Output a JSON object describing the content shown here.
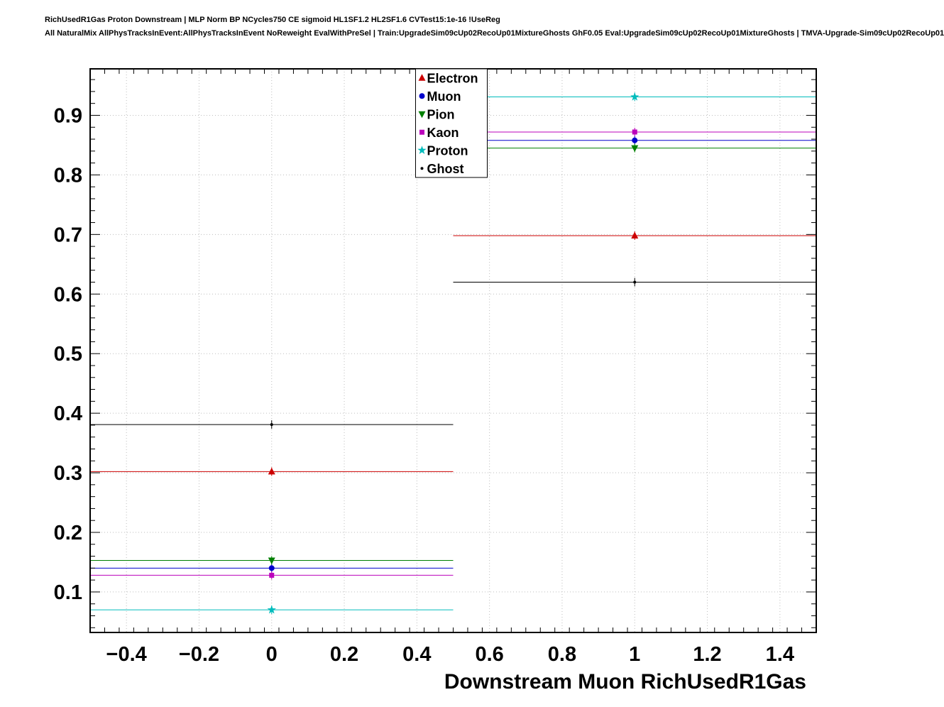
{
  "header": {
    "line1": "RichUsedR1Gas Proton Downstream | MLP Norm BP NCycles750 CE sigmoid HL1SF1.2 HL2SF1.6 CVTest15:1e-16 !UseReg",
    "line2": "All NaturalMix AllPhysTracksInEvent:AllPhysTracksInEvent NoReweight EvalWithPreSel | Train:UpgradeSim09cUp02RecoUp01MixtureGhosts GhF0.05 Eval:UpgradeSim09cUp02RecoUp01MixtureGhosts | TMVA-Upgrade-Sim09cUp02RecoUp01"
  },
  "chart_data": {
    "type": "scatter",
    "title": "",
    "xlabel": "Downstream Muon RichUsedR1Gas",
    "ylabel": "",
    "xlim": [
      -0.5,
      1.5
    ],
    "ylim": [
      0.032,
      0.978
    ],
    "grid": true,
    "grid_style": "dotted",
    "grid_color": "#bdbdbd",
    "legend_position": "top-center",
    "bin_half_width": 0.5,
    "x": [
      0,
      1
    ],
    "x_ticks": [
      -0.4,
      -0.2,
      0,
      0.2,
      0.4,
      0.6,
      0.8,
      1,
      1.2,
      1.4
    ],
    "x_tick_labels": [
      "−0.4",
      "−0.2",
      "0",
      "0.2",
      "0.4",
      "0.6",
      "0.8",
      "1",
      "1.2",
      "1.4"
    ],
    "y_ticks": [
      0.1,
      0.2,
      0.3,
      0.4,
      0.5,
      0.6,
      0.7,
      0.8,
      0.9
    ],
    "y_tick_labels": [
      "0.1",
      "0.2",
      "0.3",
      "0.4",
      "0.5",
      "0.6",
      "0.7",
      "0.8",
      "0.9"
    ],
    "series": [
      {
        "name": "Electron",
        "marker": "triangle-up",
        "color": "#cc0000",
        "values": [
          0.302,
          0.698
        ]
      },
      {
        "name": "Muon",
        "marker": "circle",
        "color": "#0000cc",
        "values": [
          0.14,
          0.858
        ]
      },
      {
        "name": "Pion",
        "marker": "triangle-down",
        "color": "#008000",
        "values": [
          0.153,
          0.845
        ]
      },
      {
        "name": "Kaon",
        "marker": "square",
        "color": "#bb00bb",
        "values": [
          0.128,
          0.872
        ]
      },
      {
        "name": "Proton",
        "marker": "star",
        "color": "#00bcbc",
        "values": [
          0.07,
          0.931
        ]
      },
      {
        "name": "Ghost",
        "marker": "dot",
        "color": "#000000",
        "values": [
          0.381,
          0.62
        ]
      }
    ]
  }
}
